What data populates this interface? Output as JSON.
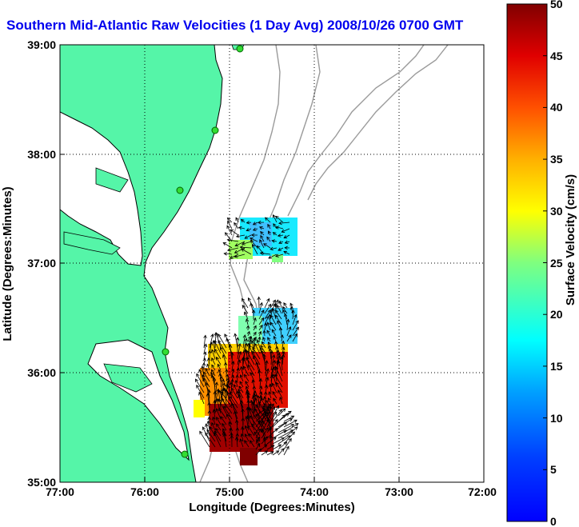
{
  "title": "Southern Mid-Atlantic Raw Velocities (1 Day Avg) 2008/10/26 0700 GMT",
  "map": {
    "xlabel": "Longitude (Degrees:Minutes)",
    "ylabel": "Latitude (Degrees:Minutes)",
    "x_ticks": [
      "77:00",
      "76:00",
      "75:00",
      "74:00",
      "73:00",
      "72:00"
    ],
    "y_ticks": [
      "39:00",
      "38:00",
      "37:00",
      "36:00",
      "35:00"
    ],
    "land_color": "#55f5a8",
    "coast_color": "#000000",
    "bathymetry_color": "#9a9a9a",
    "site_marker_color": "#33dd33"
  },
  "colorbar": {
    "label": "Surface Velocity (cm/s)",
    "ticks": [
      "50",
      "45",
      "40",
      "35",
      "30",
      "25",
      "20",
      "15",
      "10",
      "5",
      "0"
    ],
    "min": 0,
    "max": 50,
    "colormap": "jet"
  }
}
